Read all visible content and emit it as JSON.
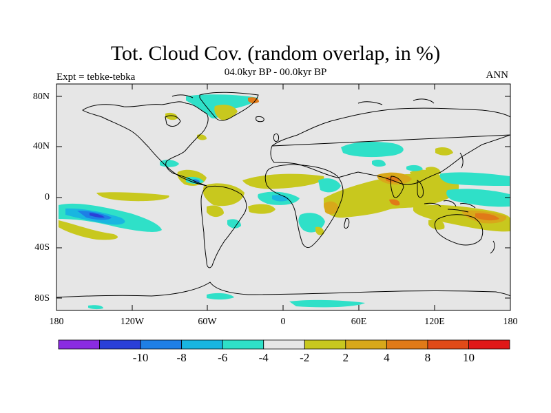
{
  "title": "Tot. Cloud Cov. (random overlap, in %)",
  "subtitle": "04.0kyr BP - 00.0kyr BP",
  "experiment_label": "Expt = tebke-tebka",
  "season_label": "ANN",
  "lat_labels": [
    "80N",
    "40N",
    "0",
    "40S",
    "80S"
  ],
  "lon_labels": [
    "180",
    "120W",
    "60W",
    "0",
    "60E",
    "120E",
    "180"
  ],
  "colorbar": {
    "colors": [
      "#8a2be2",
      "#2a3fd8",
      "#1e7fe6",
      "#19b6e0",
      "#2fe0c8",
      "#e6e6e6",
      "#c8c81e",
      "#d8a81a",
      "#e07a18",
      "#e04a18",
      "#e01818"
    ],
    "tick_labels": [
      "-10",
      "-8",
      "-6",
      "-4",
      "-2",
      "2",
      "4",
      "8",
      "10"
    ]
  },
  "map": {
    "background_color": "#e6e6e6",
    "coastline_color": "#000000"
  }
}
